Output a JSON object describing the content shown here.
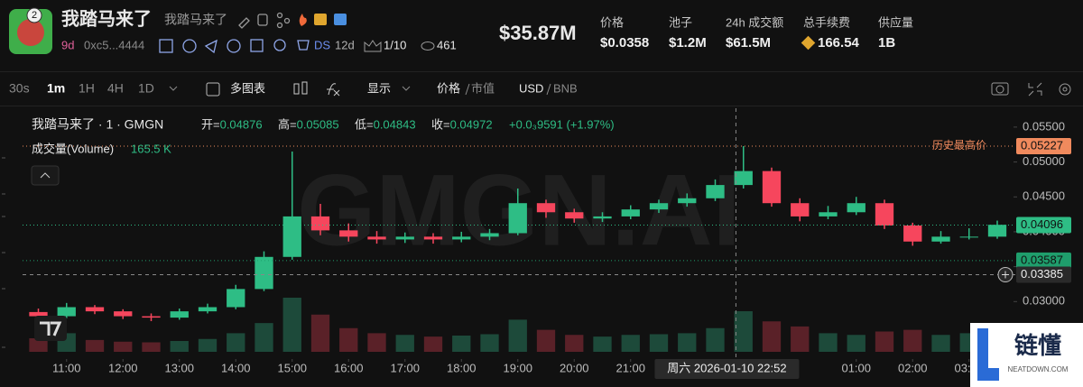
{
  "header": {
    "name": "我踏马来了",
    "alias": "我踏马来了",
    "badge": "2",
    "age": "9d",
    "address": "0xc5...4444",
    "ds_label": "DS",
    "ds_age": "12d",
    "holders_ratio": "1/10",
    "views": "461",
    "market_cap": "$35.87M",
    "stats": [
      {
        "label": "价格",
        "value": "$0.0358"
      },
      {
        "label": "池子",
        "value": "$1.2M"
      },
      {
        "label": "24h 成交额",
        "value": "$61.5M"
      },
      {
        "label": "总手续费",
        "value": "166.54"
      },
      {
        "label": "供应量",
        "value": "1B"
      }
    ]
  },
  "toolbar": {
    "intervals": [
      "30s",
      "1m",
      "1H",
      "4H",
      "1D"
    ],
    "active_interval": 1,
    "multi_chart": "多图表",
    "display": "显示",
    "price": "价格",
    "market_cap": "市值",
    "currency": "USD",
    "alt_currency": "BNB"
  },
  "legend": {
    "symbol": "我踏马来了 · 1 · GMGN",
    "ohlc": [
      {
        "label": "开=",
        "value": "0.04876"
      },
      {
        "label": "高=",
        "value": "0.05085"
      },
      {
        "label": "低=",
        "value": "0.04843"
      },
      {
        "label": "收=",
        "value": "0.04972"
      }
    ],
    "change": "+0.0₃9591 (+1.97%)",
    "volume_label": "成交量(Volume)",
    "volume_value": "165.5 K"
  },
  "watermark": "GMGN.AI",
  "site_logo": {
    "name": "链懂",
    "site": "NEATDOWN.COM"
  },
  "chart_data": {
    "type": "candlestick",
    "x": [
      10.5,
      11,
      11.5,
      12,
      12.5,
      13,
      13.5,
      14,
      14.5,
      15,
      15.5,
      16,
      16.5,
      17,
      17.5,
      18,
      18.5,
      19,
      19.5,
      20,
      20.5,
      21,
      21.5,
      22,
      22.5,
      23,
      23.5,
      24,
      24.5,
      25,
      25.5,
      26,
      26.5,
      27,
      27.5
    ],
    "open": [
      0.0285,
      0.0279,
      0.0292,
      0.0286,
      0.0279,
      0.0277,
      0.0286,
      0.0292,
      0.0318,
      0.0364,
      0.0422,
      0.0402,
      0.0393,
      0.0389,
      0.0393,
      0.0389,
      0.0393,
      0.0398,
      0.0441,
      0.0428,
      0.0419,
      0.0422,
      0.0432,
      0.0441,
      0.0448,
      0.0467,
      0.0487,
      0.0441,
      0.0422,
      0.0428,
      0.0441,
      0.0409,
      0.0386,
      0.0393,
      0.0393
    ],
    "high": [
      0.029,
      0.0298,
      0.0295,
      0.0289,
      0.0283,
      0.029,
      0.0297,
      0.0324,
      0.0372,
      0.0515,
      0.044,
      0.0412,
      0.0401,
      0.0399,
      0.0398,
      0.04,
      0.0404,
      0.0462,
      0.0446,
      0.0433,
      0.0428,
      0.0438,
      0.0446,
      0.0455,
      0.0475,
      0.05227,
      0.0492,
      0.0448,
      0.0437,
      0.045,
      0.0446,
      0.0413,
      0.0401,
      0.0405,
      0.0416
    ],
    "low": [
      0.0272,
      0.0276,
      0.0282,
      0.0275,
      0.0272,
      0.0274,
      0.0283,
      0.0289,
      0.0315,
      0.036,
      0.0395,
      0.0386,
      0.0383,
      0.0384,
      0.0383,
      0.0385,
      0.0388,
      0.0395,
      0.042,
      0.0413,
      0.0414,
      0.0418,
      0.0427,
      0.0436,
      0.0444,
      0.0462,
      0.0436,
      0.0415,
      0.0418,
      0.0424,
      0.0404,
      0.038,
      0.0383,
      0.0389,
      0.039
    ],
    "close": [
      0.0279,
      0.0292,
      0.0286,
      0.0279,
      0.0277,
      0.0286,
      0.0292,
      0.0318,
      0.0364,
      0.0422,
      0.0402,
      0.0393,
      0.0389,
      0.0393,
      0.0389,
      0.0393,
      0.0398,
      0.0441,
      0.0428,
      0.0419,
      0.0422,
      0.0432,
      0.0441,
      0.0448,
      0.0467,
      0.0487,
      0.0441,
      0.0422,
      0.0428,
      0.0441,
      0.0409,
      0.0386,
      0.0393,
      0.0393,
      0.041
    ],
    "volume": [
      40,
      55,
      35,
      30,
      28,
      32,
      38,
      55,
      85,
      160,
      110,
      70,
      55,
      50,
      45,
      48,
      52,
      95,
      65,
      50,
      45,
      50,
      52,
      55,
      70,
      120,
      90,
      75,
      55,
      50,
      60,
      65,
      50,
      55,
      60
    ],
    "up_color": "#2ebd85",
    "down_color": "#f6465d",
    "volume_up_color": "#1d4a3a",
    "volume_down_color": "#5a2128",
    "xlim": [
      10.22,
      27.74
    ],
    "ylim": [
      0.0228,
      0.0577
    ],
    "xticks": [
      {
        "value": 11,
        "label": "11:00"
      },
      {
        "value": 12,
        "label": "12:00"
      },
      {
        "value": 13,
        "label": "13:00"
      },
      {
        "value": 14,
        "label": "14:00"
      },
      {
        "value": 15,
        "label": "15:00"
      },
      {
        "value": 16,
        "label": "16:00"
      },
      {
        "value": 17,
        "label": "17:00"
      },
      {
        "value": 18,
        "label": "18:00"
      },
      {
        "value": 19,
        "label": "19:00"
      },
      {
        "value": 20,
        "label": "20:00"
      },
      {
        "value": 21,
        "label": "21:00"
      },
      {
        "value": 25,
        "label": "01:00"
      },
      {
        "value": 26,
        "label": "02:00"
      },
      {
        "value": 27,
        "label": "03:00"
      }
    ],
    "yticks": [
      {
        "value": 0.03,
        "label": "0.03000"
      },
      {
        "value": 0.035,
        "label": "0.03500"
      },
      {
        "value": 0.04,
        "label": "0.04000"
      },
      {
        "value": 0.045,
        "label": "0.04500"
      },
      {
        "value": 0.05,
        "label": "0.05000"
      },
      {
        "value": 0.055,
        "label": "0.05500"
      }
    ],
    "price_lines": [
      {
        "value": 0.05227,
        "color": "#f08a5d",
        "note": "历史最高价"
      },
      {
        "value": 0.04096,
        "color": "#2ebd85"
      },
      {
        "value": 0.03587,
        "color": "#1f9e6c"
      }
    ],
    "crosshair": {
      "x": 22.867,
      "y": 0.03385,
      "time_label": "周六 2026-01-10  22:52"
    }
  }
}
